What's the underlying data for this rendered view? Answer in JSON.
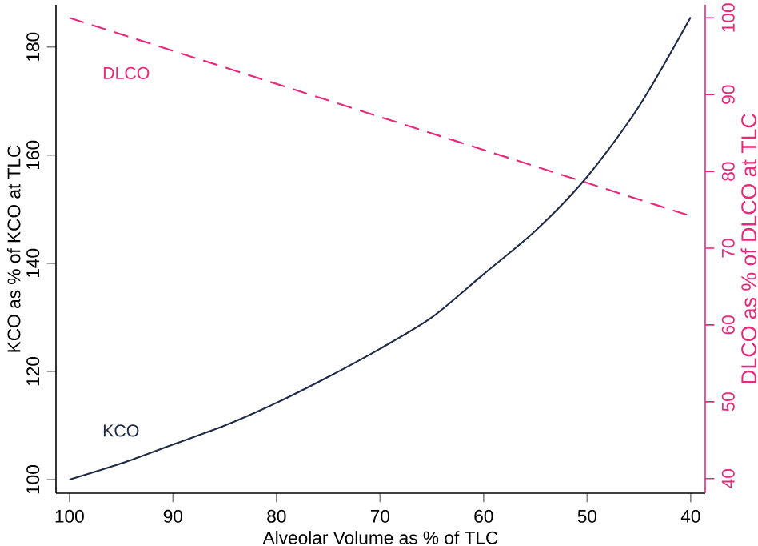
{
  "chart_data": {
    "type": "line",
    "xlabel": "Alveolar Volume as % of TLC",
    "ylabel": "KCO as % of KCO at TLC",
    "y2label": "DLCO as % of DLCO at TLC",
    "xlim": [
      101.3,
      38.6
    ],
    "xticks": [
      100,
      90,
      80,
      70,
      60,
      50,
      40
    ],
    "ylim": [
      97.5,
      187.8
    ],
    "yticks": [
      100,
      120,
      140,
      160,
      180
    ],
    "y2lim": [
      38.1,
      101.7
    ],
    "y2ticks": [
      40,
      50,
      60,
      70,
      80,
      90,
      100
    ],
    "series": [
      {
        "name": "KCO",
        "color": "#1f2a44",
        "line_style": "solid",
        "x": [
          100,
          95,
          90,
          85,
          80,
          75,
          70,
          65,
          60,
          55,
          50,
          45,
          40
        ],
        "values": [
          100,
          103,
          106.5,
          110,
          114.2,
          119,
          124.2,
          130,
          138,
          146,
          156,
          169,
          185.5
        ]
      },
      {
        "name": "DLCO",
        "color": "#e8287a",
        "line_style": "dashed",
        "axis": "y2",
        "x": [
          100,
          40
        ],
        "values": [
          100,
          74.2
        ]
      }
    ]
  }
}
